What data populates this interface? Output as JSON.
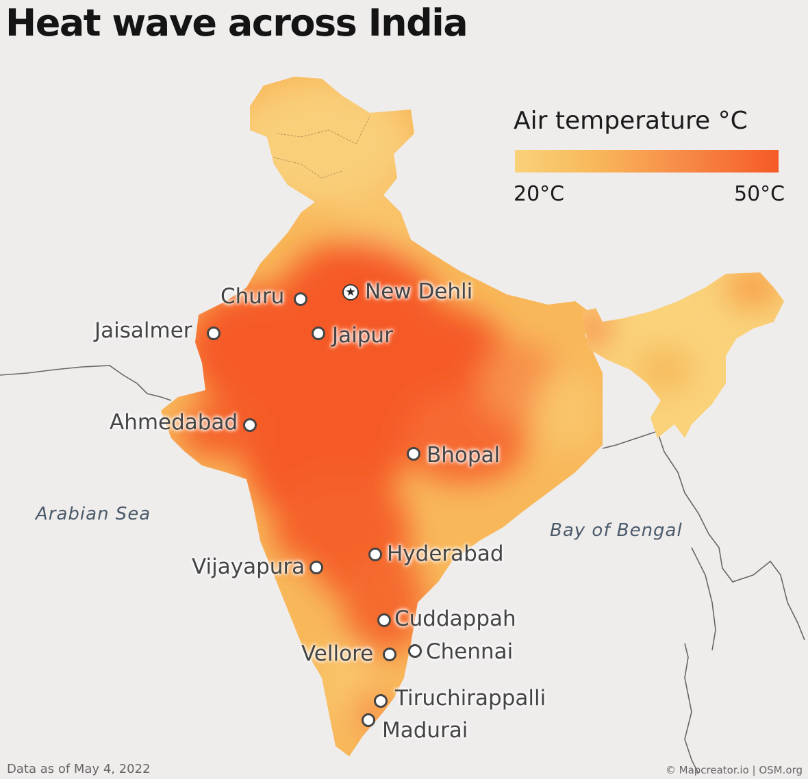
{
  "title": "Heat wave across India",
  "legend": {
    "title": "Air temperature °C",
    "min_label": "20°C",
    "max_label": "50°C",
    "colors": [
      "#f9d27a",
      "#f8b85a",
      "#f7904a",
      "#f55a25"
    ]
  },
  "cities": [
    {
      "name": "New Dehli",
      "capital": true
    },
    {
      "name": "Churu"
    },
    {
      "name": "Jaisalmer"
    },
    {
      "name": "Jaipur"
    },
    {
      "name": "Ahmedabad"
    },
    {
      "name": "Bhopal"
    },
    {
      "name": "Hyderabad"
    },
    {
      "name": "Vijayapura"
    },
    {
      "name": "Cuddappah"
    },
    {
      "name": "Vellore"
    },
    {
      "name": "Chennai"
    },
    {
      "name": "Tiruchirappalli"
    },
    {
      "name": "Madurai"
    }
  ],
  "seas": {
    "arabian": "Arabian Sea",
    "bengal": "Bay of Bengal"
  },
  "footer": {
    "data_note": "Data as of May 4, 2022",
    "credit": "© Mapcreator.io | OSM.org"
  },
  "colors": {
    "background": "#efecec",
    "hot": "#f55a25",
    "warm": "#f7904a",
    "mild": "#f8b85a",
    "cool": "#f9d27a"
  }
}
